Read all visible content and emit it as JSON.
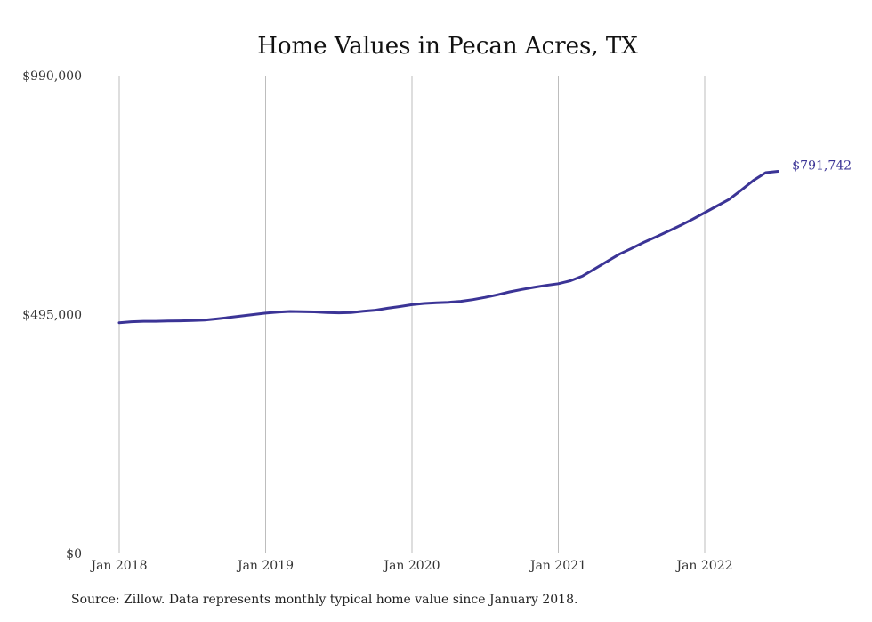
{
  "chart_data": {
    "type": "line",
    "title": "Home Values in Pecan Acres, TX",
    "xlabel": "",
    "ylabel": "",
    "ylim": [
      0,
      990000
    ],
    "yticks": [
      {
        "value": 0,
        "label": "$0"
      },
      {
        "value": 495000,
        "label": "$495,000"
      },
      {
        "value": 990000,
        "label": "$990,000"
      }
    ],
    "xticks": [
      {
        "value": "2018-01",
        "label": "Jan 2018"
      },
      {
        "value": "2019-01",
        "label": "Jan 2019"
      },
      {
        "value": "2020-01",
        "label": "Jan 2020"
      },
      {
        "value": "2021-01",
        "label": "Jan 2021"
      },
      {
        "value": "2022-01",
        "label": "Jan 2022"
      }
    ],
    "grid": "vertical",
    "color": "#3b3496",
    "end_label": "$791,742",
    "series": [
      {
        "x": [
          "2018-01",
          "2018-02",
          "2018-03",
          "2018-04",
          "2018-05",
          "2018-06",
          "2018-07",
          "2018-08",
          "2018-09",
          "2018-10",
          "2018-11",
          "2018-12",
          "2019-01",
          "2019-02",
          "2019-03",
          "2019-04",
          "2019-05",
          "2019-06",
          "2019-07",
          "2019-08",
          "2019-09",
          "2019-10",
          "2019-11",
          "2019-12",
          "2020-01",
          "2020-02",
          "2020-03",
          "2020-04",
          "2020-05",
          "2020-06",
          "2020-07",
          "2020-08",
          "2020-09",
          "2020-10",
          "2020-11",
          "2020-12",
          "2021-01",
          "2021-02",
          "2021-03",
          "2021-04",
          "2021-05",
          "2021-06",
          "2021-07",
          "2021-08",
          "2021-09",
          "2021-10",
          "2021-11",
          "2021-12",
          "2022-01",
          "2022-02",
          "2022-03",
          "2022-04",
          "2022-05",
          "2022-06",
          "2022-07"
        ],
        "values": [
          478000,
          480000,
          481000,
          481000,
          481500,
          482000,
          482500,
          483500,
          486000,
          489000,
          492000,
          495000,
          498000,
          500000,
          501500,
          501000,
          500500,
          499000,
          498500,
          499000,
          502000,
          504000,
          508000,
          511500,
          515500,
          518000,
          519500,
          520500,
          522500,
          526000,
          530500,
          536000,
          542000,
          547000,
          551500,
          555500,
          559000,
          565000,
          575000,
          590000,
          605000,
          620000,
          632000,
          644500,
          656000,
          667500,
          679500,
          692500,
          706000,
          720000,
          733500,
          753000,
          773000,
          789000,
          791742
        ]
      }
    ]
  },
  "source_note": "Source: Zillow. Data represents monthly typical home value since January 2018."
}
